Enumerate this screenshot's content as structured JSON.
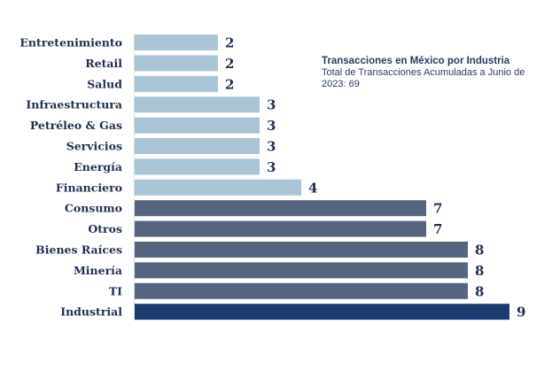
{
  "chart_data": {
    "type": "bar",
    "orientation": "horizontal",
    "title": "Transacciones en México por Industria",
    "subtitle": "Total de Transacciones Acumuladas a Junio de 2023: 69",
    "categories": [
      "Entretenimiento",
      "Retail",
      "Salud",
      "Infraestructura",
      "Petréleo & Gas",
      "Servicios",
      "Energía",
      "Financiero",
      "Consumo",
      "Otros",
      "Bienes Raíces",
      "Minería",
      "TI",
      "Industrial"
    ],
    "values": [
      2,
      2,
      2,
      3,
      3,
      3,
      3,
      4,
      7,
      7,
      8,
      8,
      8,
      9
    ],
    "xlim": [
      0,
      9
    ],
    "grid": false,
    "legend": "none",
    "colors": {
      "light": "#a9c4d5",
      "medium": "#55657f",
      "dark": "#1d3a6e",
      "text": "#1f2f4e"
    }
  }
}
